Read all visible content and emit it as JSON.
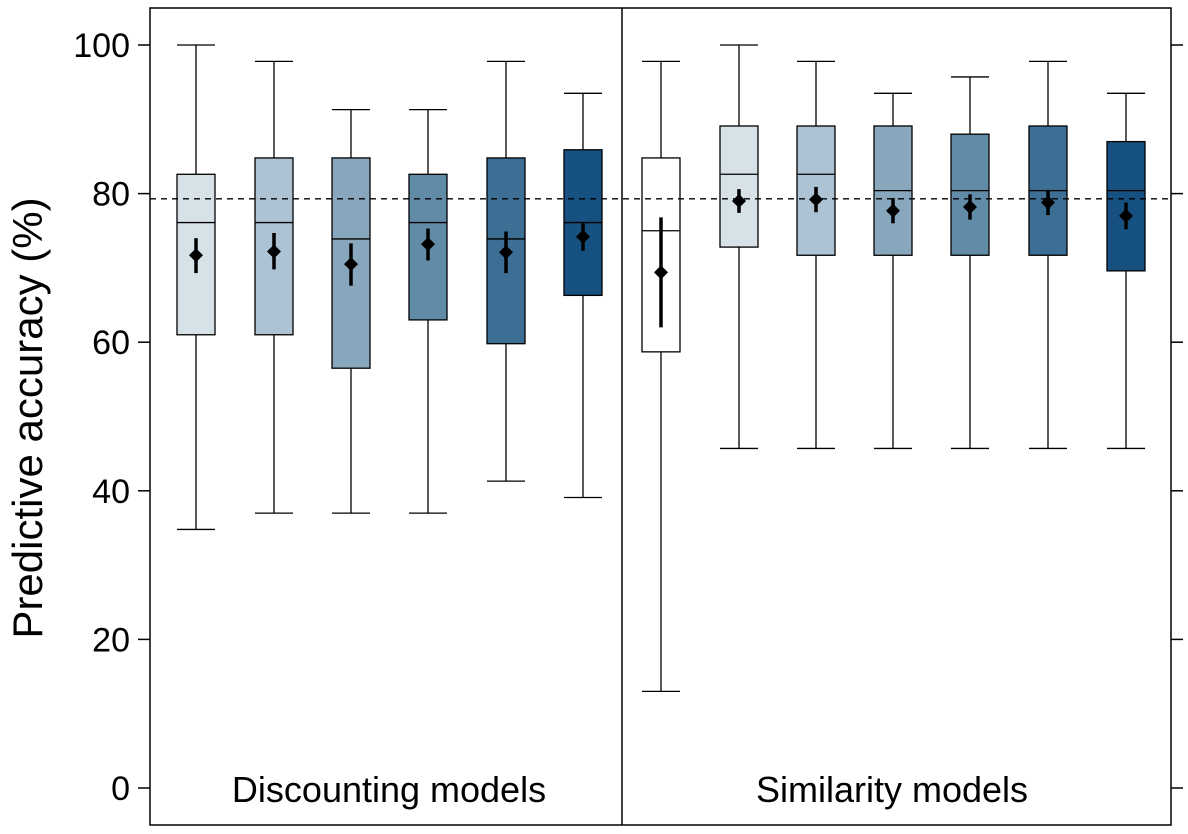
{
  "chart_data": {
    "type": "box",
    "ylabel": "Predictive accuracy (%)",
    "ylim": [
      0,
      100
    ],
    "yticks": [
      0,
      20,
      40,
      60,
      80,
      100
    ],
    "grid": false,
    "reference_line": 79.3,
    "panels": [
      {
        "label": "Discounting models",
        "boxes": [
          {
            "whisker_low": 34.8,
            "q1": 61.0,
            "median": 76.1,
            "q3": 82.6,
            "whisker_high": 100.0,
            "mean": 71.7,
            "ci_low": 69.3,
            "ci_high": 74.0,
            "color": "#d6e1e8"
          },
          {
            "whisker_low": 37.0,
            "q1": 61.0,
            "median": 76.1,
            "q3": 84.8,
            "whisker_high": 97.8,
            "mean": 72.2,
            "ci_low": 69.8,
            "ci_high": 74.7,
            "color": "#adc2d2"
          },
          {
            "whisker_low": 37.0,
            "q1": 56.5,
            "median": 73.9,
            "q3": 84.8,
            "whisker_high": 91.3,
            "mean": 70.5,
            "ci_low": 67.6,
            "ci_high": 73.3,
            "color": "#88a7bd"
          },
          {
            "whisker_low": 37.0,
            "q1": 63.0,
            "median": 76.1,
            "q3": 82.6,
            "whisker_high": 91.3,
            "mean": 73.2,
            "ci_low": 71.0,
            "ci_high": 75.3,
            "color": "#628ba8"
          },
          {
            "whisker_low": 41.3,
            "q1": 59.8,
            "median": 73.9,
            "q3": 84.8,
            "whisker_high": 97.8,
            "mean": 72.1,
            "ci_low": 69.3,
            "ci_high": 74.9,
            "color": "#3c6f93"
          },
          {
            "whisker_low": 39.1,
            "q1": 66.3,
            "median": 76.1,
            "q3": 85.9,
            "whisker_high": 93.5,
            "mean": 74.2,
            "ci_low": 72.3,
            "ci_high": 76.0,
            "color": "#175181"
          }
        ]
      },
      {
        "label": "Similarity models",
        "boxes": [
          {
            "whisker_low": 13.0,
            "q1": 58.7,
            "median": 75.0,
            "q3": 84.8,
            "whisker_high": 97.8,
            "mean": 69.4,
            "ci_low": 62.0,
            "ci_high": 76.8,
            "color": "#ffffff"
          },
          {
            "whisker_low": 45.7,
            "q1": 72.8,
            "median": 82.6,
            "q3": 89.1,
            "whisker_high": 100.0,
            "mean": 79.0,
            "ci_low": 77.4,
            "ci_high": 80.6,
            "color": "#d6e1e8"
          },
          {
            "whisker_low": 45.7,
            "q1": 71.7,
            "median": 82.6,
            "q3": 89.1,
            "whisker_high": 97.8,
            "mean": 79.2,
            "ci_low": 77.5,
            "ci_high": 80.9,
            "color": "#adc2d2"
          },
          {
            "whisker_low": 45.7,
            "q1": 71.7,
            "median": 80.4,
            "q3": 89.1,
            "whisker_high": 93.5,
            "mean": 77.7,
            "ci_low": 76.0,
            "ci_high": 79.4,
            "color": "#88a7bd"
          },
          {
            "whisker_low": 45.7,
            "q1": 71.7,
            "median": 80.4,
            "q3": 88.0,
            "whisker_high": 95.7,
            "mean": 78.2,
            "ci_low": 76.5,
            "ci_high": 79.9,
            "color": "#628ba8"
          },
          {
            "whisker_low": 45.7,
            "q1": 71.7,
            "median": 80.4,
            "q3": 89.1,
            "whisker_high": 97.8,
            "mean": 78.8,
            "ci_low": 77.1,
            "ci_high": 80.5,
            "color": "#3c6f93"
          },
          {
            "whisker_low": 45.7,
            "q1": 69.6,
            "median": 80.4,
            "q3": 87.0,
            "whisker_high": 93.5,
            "mean": 77.0,
            "ci_low": 75.2,
            "ci_high": 78.8,
            "color": "#175181"
          }
        ]
      }
    ]
  }
}
